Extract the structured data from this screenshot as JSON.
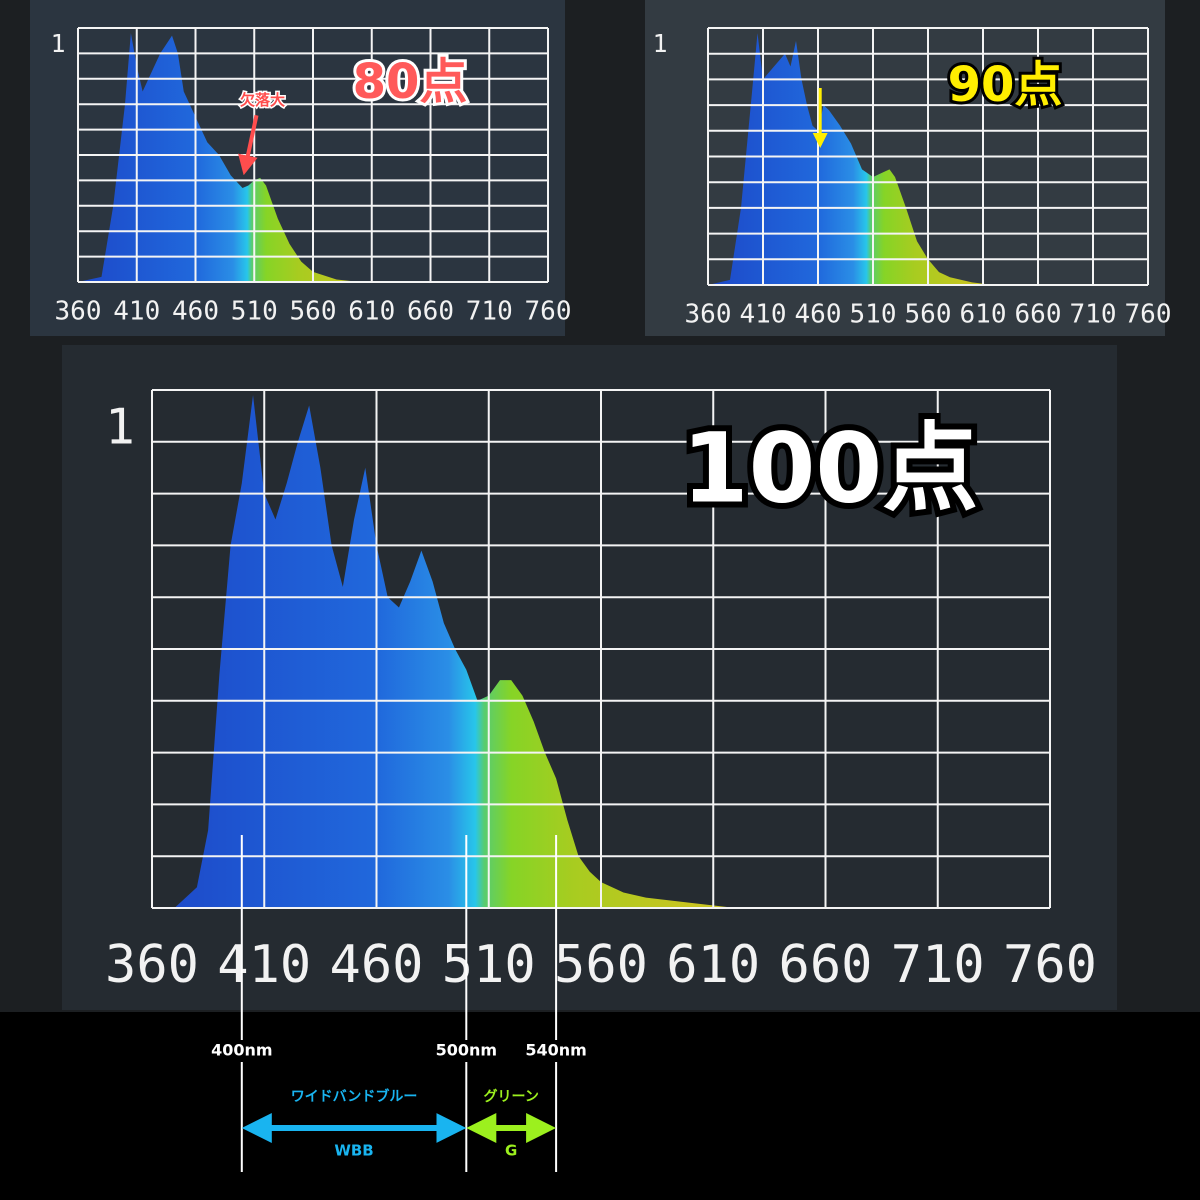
{
  "chart_data": [
    {
      "type": "area",
      "title": "80点",
      "title_color": "#ff5a5a",
      "x": [
        360,
        380,
        390,
        400,
        405,
        410,
        415,
        420,
        430,
        440,
        445,
        450,
        460,
        470,
        480,
        490,
        500,
        505,
        510,
        515,
        520,
        530,
        540,
        550,
        560,
        580,
        600,
        760
      ],
      "values": [
        0,
        0.02,
        0.3,
        0.7,
        0.98,
        0.85,
        0.75,
        0.8,
        0.9,
        0.97,
        0.9,
        0.75,
        0.65,
        0.55,
        0.5,
        0.42,
        0.37,
        0.38,
        0.4,
        0.41,
        0.38,
        0.25,
        0.15,
        0.08,
        0.04,
        0.01,
        0,
        0
      ],
      "xlim": [
        360,
        760
      ],
      "xticks": [
        360,
        410,
        460,
        510,
        560,
        610,
        660,
        710,
        760
      ],
      "ylim": [
        0,
        1
      ],
      "yticks": [
        1
      ],
      "ygrid_divisions": 10,
      "grid": true,
      "annotation": {
        "text": "欠落大",
        "x": 500,
        "color": "#ff4d4d"
      }
    },
    {
      "type": "area",
      "title": "90点",
      "title_color": "#ffee00",
      "x": [
        360,
        380,
        390,
        400,
        405,
        410,
        420,
        430,
        435,
        440,
        445,
        450,
        455,
        460,
        465,
        470,
        480,
        490,
        500,
        510,
        520,
        525,
        530,
        540,
        550,
        560,
        570,
        580,
        600,
        620,
        760
      ],
      "values": [
        0,
        0.02,
        0.3,
        0.75,
        0.98,
        0.8,
        0.85,
        0.9,
        0.85,
        0.95,
        0.8,
        0.7,
        0.62,
        0.6,
        0.7,
        0.68,
        0.62,
        0.55,
        0.45,
        0.42,
        0.44,
        0.45,
        0.42,
        0.3,
        0.17,
        0.1,
        0.05,
        0.03,
        0.01,
        0,
        0
      ],
      "xlim": [
        360,
        760
      ],
      "xticks": [
        360,
        410,
        460,
        510,
        560,
        610,
        660,
        710,
        760
      ],
      "ylim": [
        0,
        1
      ],
      "yticks": [
        1
      ],
      "ygrid_divisions": 10,
      "grid": true,
      "arrow": {
        "x": 462,
        "color": "#ffee00"
      }
    },
    {
      "type": "area",
      "title": "100点",
      "title_color": "#ffffff",
      "x": [
        360,
        370,
        380,
        385,
        390,
        395,
        400,
        405,
        410,
        415,
        420,
        425,
        430,
        435,
        440,
        445,
        450,
        455,
        460,
        465,
        470,
        475,
        480,
        485,
        490,
        495,
        500,
        505,
        510,
        515,
        520,
        525,
        530,
        535,
        540,
        545,
        550,
        555,
        560,
        570,
        580,
        600,
        620,
        760
      ],
      "values": [
        0,
        0,
        0.04,
        0.15,
        0.45,
        0.7,
        0.82,
        0.99,
        0.8,
        0.75,
        0.82,
        0.9,
        0.97,
        0.85,
        0.7,
        0.62,
        0.75,
        0.85,
        0.7,
        0.6,
        0.58,
        0.63,
        0.69,
        0.63,
        0.55,
        0.5,
        0.46,
        0.4,
        0.41,
        0.44,
        0.44,
        0.41,
        0.36,
        0.3,
        0.25,
        0.17,
        0.1,
        0.07,
        0.05,
        0.03,
        0.02,
        0.01,
        0,
        0
      ],
      "xlim": [
        360,
        760
      ],
      "xticks": [
        360,
        410,
        460,
        510,
        560,
        610,
        660,
        710,
        760
      ],
      "ylim": [
        0,
        1
      ],
      "yticks": [
        1
      ],
      "ygrid_divisions": 10,
      "grid": true,
      "guides": [
        {
          "x": 400,
          "label": "400nm"
        },
        {
          "x": 500,
          "label": "500nm"
        },
        {
          "x": 540,
          "label": "540nm"
        }
      ],
      "bands": [
        {
          "from": 400,
          "to": 500,
          "label": "ワイドバンドブルー",
          "abbr": "WBB",
          "color": "#19b4f0"
        },
        {
          "from": 500,
          "to": 540,
          "label": "グリーン",
          "abbr": "G",
          "color": "#9cf01e"
        }
      ]
    }
  ]
}
